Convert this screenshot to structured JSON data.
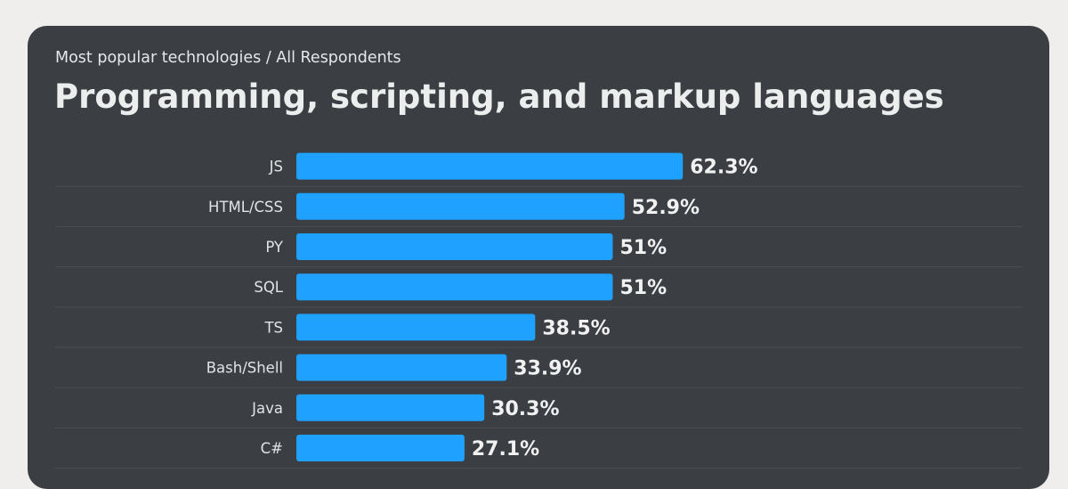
{
  "header": {
    "breadcrumb": "Most popular technologies / All Respondents",
    "title": "Programming, scripting, and markup languages"
  },
  "colors": {
    "background": "#efeeec",
    "card": "#3b3e43",
    "bar": "#1fa1ff",
    "label_text": "#e2e3e4",
    "value_text": "#f1f1f1",
    "divider": "#4b4e53"
  },
  "chart_data": {
    "type": "bar",
    "orientation": "horizontal",
    "unit": "%",
    "categories": [
      "JS",
      "HTML/CSS",
      "PY",
      "SQL",
      "TS",
      "Bash/Shell",
      "Java",
      "C#"
    ],
    "values": [
      62.3,
      52.9,
      51,
      51,
      38.5,
      33.9,
      30.3,
      27.1
    ],
    "value_labels": [
      "62.3%",
      "52.9%",
      "51%",
      "51%",
      "38.5%",
      "33.9%",
      "30.3%",
      "27.1%"
    ],
    "grid": false
  }
}
